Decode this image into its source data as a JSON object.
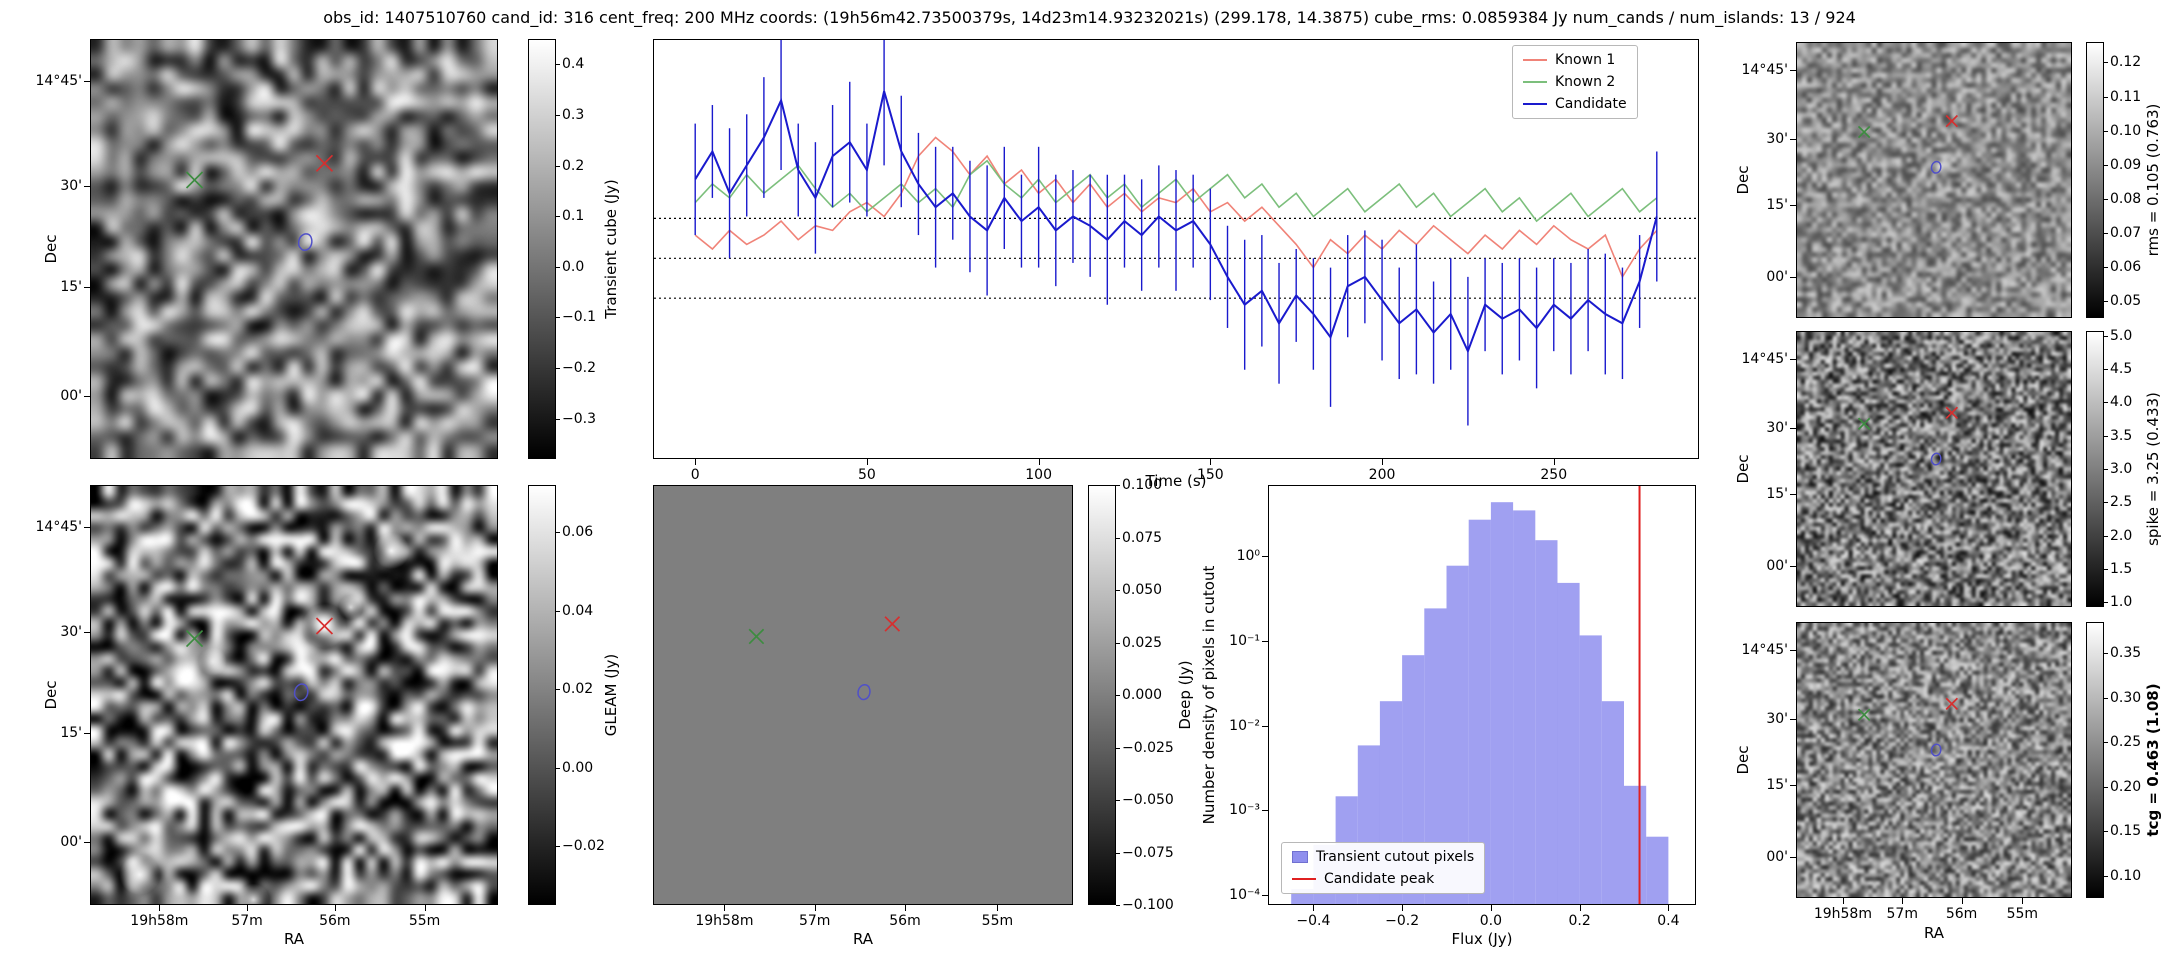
{
  "title": "obs_id: 1407510760 cand_id: 316 cent_freq: 200 MHz coords: (19h56m42.73500379s, 14d23m14.93232021s) (299.178, 14.3875) cube_rms: 0.0859384 Jy num_cands / num_islands: 13 / 924",
  "colors": {
    "green_x": "#3d8c40",
    "red_x": "#d62f2f",
    "contour": "#5050c8",
    "known1": "#f08378",
    "known2": "#7cbf7c",
    "candidate": "#1a1acd",
    "hist_bar": "#8f8fee",
    "peak_line": "#e02020"
  },
  "axes": {
    "ra_label": "RA",
    "dec_label": "Dec",
    "ra_ticks": [
      {
        "f": 0.17,
        "t": "19h58m"
      },
      {
        "f": 0.385,
        "t": "57m"
      },
      {
        "f": 0.6,
        "t": "56m"
      },
      {
        "f": 0.82,
        "t": "55m"
      }
    ],
    "dec_ticks": [
      {
        "f": 0.1,
        "t": "14°45'"
      },
      {
        "f": 0.35,
        "t": "30'"
      },
      {
        "f": 0.59,
        "t": "15'"
      },
      {
        "f": 0.85,
        "t": "00'"
      }
    ]
  },
  "image_panels": [
    {
      "key": "transient_cube",
      "colorbar": {
        "label": "Transient cube (Jy)",
        "bold": false,
        "min": -0.38,
        "max": 0.45,
        "ticks": [
          {
            "v": 0.4,
            "t": "0.4"
          },
          {
            "v": 0.3,
            "t": "0.3"
          },
          {
            "v": 0.2,
            "t": "0.2"
          },
          {
            "v": 0.1,
            "t": "0.1"
          },
          {
            "v": 0.0,
            "t": "0.0"
          },
          {
            "v": -0.1,
            "t": "−0.1"
          },
          {
            "v": -0.2,
            "t": "−0.2"
          },
          {
            "v": -0.3,
            "t": "−0.3"
          }
        ]
      },
      "markers": {
        "green_x": [
          0.255,
          0.335
        ],
        "red_x": [
          0.575,
          0.295
        ],
        "contour": [
          0.525,
          0.48
        ]
      }
    },
    {
      "key": "gleam",
      "colorbar": {
        "label": "GLEAM (Jy)",
        "bold": false,
        "min": -0.035,
        "max": 0.072,
        "ticks": [
          {
            "v": 0.06,
            "t": "0.06"
          },
          {
            "v": 0.04,
            "t": "0.04"
          },
          {
            "v": 0.02,
            "t": "0.02"
          },
          {
            "v": 0.0,
            "t": "0.00"
          },
          {
            "v": -0.02,
            "t": "−0.02"
          }
        ]
      },
      "markers": {
        "green_x": [
          0.255,
          0.365
        ],
        "red_x": [
          0.575,
          0.335
        ],
        "contour": [
          0.515,
          0.49
        ]
      }
    },
    {
      "key": "deep",
      "colorbar": {
        "label": "Deep (Jy)",
        "bold": false,
        "min": -0.1,
        "max": 0.1,
        "ticks": [
          {
            "v": 0.1,
            "t": "0.100"
          },
          {
            "v": 0.075,
            "t": "0.075"
          },
          {
            "v": 0.05,
            "t": "0.050"
          },
          {
            "v": 0.025,
            "t": "0.025"
          },
          {
            "v": 0.0,
            "t": "0.000"
          },
          {
            "v": -0.025,
            "t": "−0.025"
          },
          {
            "v": -0.05,
            "t": "−0.050"
          },
          {
            "v": -0.075,
            "t": "−0.075"
          },
          {
            "v": -0.1,
            "t": "−0.100"
          }
        ]
      },
      "markers": {
        "green_x": [
          0.245,
          0.36
        ],
        "red_x": [
          0.57,
          0.33
        ],
        "contour": [
          0.5,
          0.49
        ]
      }
    },
    {
      "key": "rms",
      "colorbar": {
        "label": "rms = 0.105 (0.763)",
        "bold": false,
        "min": 0.045,
        "max": 0.126,
        "ticks": [
          {
            "v": 0.12,
            "t": "0.12"
          },
          {
            "v": 0.11,
            "t": "0.11"
          },
          {
            "v": 0.1,
            "t": "0.10"
          },
          {
            "v": 0.09,
            "t": "0.09"
          },
          {
            "v": 0.08,
            "t": "0.08"
          },
          {
            "v": 0.07,
            "t": "0.07"
          },
          {
            "v": 0.06,
            "t": "0.06"
          },
          {
            "v": 0.05,
            "t": "0.05"
          }
        ]
      },
      "markers": {
        "green_x": [
          0.245,
          0.325
        ],
        "red_x": [
          0.565,
          0.285
        ],
        "contour": [
          0.505,
          0.45
        ]
      }
    },
    {
      "key": "spike",
      "colorbar": {
        "label": "spike = 3.25 (0.433)",
        "bold": false,
        "min": 0.93,
        "max": 5.07,
        "ticks": [
          {
            "v": 5.0,
            "t": "5.0"
          },
          {
            "v": 4.5,
            "t": "4.5"
          },
          {
            "v": 4.0,
            "t": "4.0"
          },
          {
            "v": 3.5,
            "t": "3.5"
          },
          {
            "v": 3.0,
            "t": "3.0"
          },
          {
            "v": 2.5,
            "t": "2.5"
          },
          {
            "v": 2.0,
            "t": "2.0"
          },
          {
            "v": 1.5,
            "t": "1.5"
          },
          {
            "v": 1.0,
            "t": "1.0"
          }
        ]
      },
      "markers": {
        "green_x": [
          0.245,
          0.335
        ],
        "red_x": [
          0.565,
          0.295
        ],
        "contour": [
          0.505,
          0.46
        ]
      }
    },
    {
      "key": "tcg",
      "colorbar": {
        "label": "tcg = 0.463 (1.08)",
        "bold": true,
        "min": 0.075,
        "max": 0.385,
        "ticks": [
          {
            "v": 0.35,
            "t": "0.35"
          },
          {
            "v": 0.3,
            "t": "0.30"
          },
          {
            "v": 0.25,
            "t": "0.25"
          },
          {
            "v": 0.2,
            "t": "0.20"
          },
          {
            "v": 0.15,
            "t": "0.15"
          },
          {
            "v": 0.1,
            "t": "0.10"
          }
        ]
      },
      "markers": {
        "green_x": [
          0.245,
          0.335
        ],
        "red_x": [
          0.565,
          0.295
        ],
        "contour": [
          0.505,
          0.46
        ]
      }
    }
  ],
  "chart_data": [
    {
      "type": "line",
      "title": "",
      "xlabel": "Time (s)",
      "ylabel": "",
      "xlim": [
        -12,
        292
      ],
      "ylim": [
        -0.43,
        0.47
      ],
      "hlines": [
        0.0859384,
        0.0,
        -0.0859384
      ],
      "legend_position": "upper right",
      "xticks": [
        {
          "v": 0,
          "t": "0"
        },
        {
          "v": 50,
          "t": "50"
        },
        {
          "v": 100,
          "t": "100"
        },
        {
          "v": 150,
          "t": "150"
        },
        {
          "v": 200,
          "t": "200"
        },
        {
          "v": 250,
          "t": "250"
        }
      ],
      "x": [
        0,
        5,
        10,
        15,
        20,
        25,
        30,
        35,
        40,
        45,
        50,
        55,
        60,
        65,
        70,
        75,
        80,
        85,
        90,
        95,
        100,
        105,
        110,
        115,
        120,
        125,
        130,
        135,
        140,
        145,
        150,
        155,
        160,
        165,
        170,
        175,
        180,
        185,
        190,
        195,
        200,
        205,
        210,
        215,
        220,
        225,
        230,
        235,
        240,
        245,
        250,
        255,
        260,
        265,
        270,
        275,
        280
      ],
      "series": [
        {
          "name": "Known 1",
          "color": "#f08378",
          "values": [
            0.05,
            0.02,
            0.06,
            0.03,
            0.05,
            0.08,
            0.04,
            0.07,
            0.06,
            0.1,
            0.12,
            0.09,
            0.14,
            0.22,
            0.26,
            0.23,
            0.18,
            0.22,
            0.16,
            0.19,
            0.14,
            0.17,
            0.12,
            0.16,
            0.11,
            0.14,
            0.1,
            0.13,
            0.12,
            0.15,
            0.1,
            0.12,
            0.08,
            0.11,
            0.07,
            0.03,
            -0.02,
            0.04,
            0.01,
            0.05,
            0.02,
            0.06,
            0.03,
            0.07,
            0.04,
            0.01,
            0.05,
            0.02,
            0.06,
            0.03,
            0.07,
            0.04,
            0.02,
            0.05,
            -0.04,
            0.02,
            0.06
          ]
        },
        {
          "name": "Known 2",
          "color": "#7cbf7c",
          "values": [
            0.12,
            0.16,
            0.13,
            0.18,
            0.14,
            0.17,
            0.2,
            0.15,
            0.11,
            0.14,
            0.1,
            0.13,
            0.16,
            0.12,
            0.15,
            0.11,
            0.18,
            0.21,
            0.16,
            0.13,
            0.17,
            0.12,
            0.15,
            0.18,
            0.13,
            0.16,
            0.11,
            0.14,
            0.17,
            0.12,
            0.15,
            0.18,
            0.13,
            0.16,
            0.11,
            0.14,
            0.09,
            0.12,
            0.15,
            0.1,
            0.13,
            0.16,
            0.11,
            0.14,
            0.09,
            0.12,
            0.15,
            0.1,
            0.13,
            0.08,
            0.11,
            0.14,
            0.09,
            0.12,
            0.15,
            0.1,
            0.13
          ]
        },
        {
          "name": "Candidate",
          "color": "#1a1acd",
          "values": [
            0.17,
            0.23,
            0.14,
            0.2,
            0.26,
            0.34,
            0.19,
            0.13,
            0.22,
            0.25,
            0.19,
            0.36,
            0.23,
            0.16,
            0.11,
            0.14,
            0.09,
            0.06,
            0.13,
            0.08,
            0.11,
            0.06,
            0.09,
            0.07,
            0.04,
            0.08,
            0.05,
            0.09,
            0.06,
            0.08,
            0.03,
            -0.04,
            -0.1,
            -0.07,
            -0.14,
            -0.08,
            -0.12,
            -0.17,
            -0.06,
            -0.04,
            -0.09,
            -0.14,
            -0.11,
            -0.16,
            -0.12,
            -0.2,
            -0.1,
            -0.13,
            -0.11,
            -0.15,
            -0.1,
            -0.13,
            -0.09,
            -0.12,
            -0.14,
            -0.05,
            0.09
          ],
          "errors": [
            0.12,
            0.1,
            0.14,
            0.11,
            0.13,
            0.15,
            0.1,
            0.12,
            0.11,
            0.13,
            0.1,
            0.16,
            0.12,
            0.11,
            0.13,
            0.1,
            0.12,
            0.14,
            0.11,
            0.1,
            0.13,
            0.12,
            0.1,
            0.11,
            0.14,
            0.1,
            0.12,
            0.11,
            0.13,
            0.1,
            0.12,
            0.11,
            0.14,
            0.12,
            0.13,
            0.1,
            0.12,
            0.15,
            0.11,
            0.1,
            0.13,
            0.12,
            0.14,
            0.11,
            0.12,
            0.16,
            0.1,
            0.12,
            0.11,
            0.13,
            0.1,
            0.12,
            0.11,
            0.13,
            0.12,
            0.1,
            0.14
          ]
        }
      ]
    },
    {
      "type": "bar",
      "title": "",
      "xlabel": "Flux (Jy)",
      "ylabel": "Number density of pixels in cutout",
      "ylog": true,
      "xlim": [
        -0.5,
        0.46
      ],
      "ylim": [
        8e-05,
        7
      ],
      "bar_color": "#8f8fee",
      "bin_edges": [
        -0.45,
        -0.4,
        -0.35,
        -0.3,
        -0.25,
        -0.2,
        -0.15,
        -0.1,
        -0.05,
        0.0,
        0.05,
        0.1,
        0.15,
        0.2,
        0.25,
        0.3,
        0.35,
        0.4
      ],
      "values": [
        0.00012,
        0.0004,
        0.0015,
        0.006,
        0.02,
        0.07,
        0.25,
        0.8,
        2.8,
        4.5,
        3.6,
        1.6,
        0.5,
        0.12,
        0.02,
        0.002,
        0.0005
      ],
      "vline": {
        "x": 0.335,
        "color": "#e02020"
      },
      "legend_labels": [
        "Transient cutout pixels",
        "Candidate peak"
      ],
      "legend_position": "lower left",
      "xticks": [
        {
          "v": -0.4,
          "t": "−0.4"
        },
        {
          "v": -0.2,
          "t": "−0.2"
        },
        {
          "v": 0.0,
          "t": "0.0"
        },
        {
          "v": 0.2,
          "t": "0.2"
        },
        {
          "v": 0.4,
          "t": "0.4"
        }
      ],
      "yticks": [
        {
          "v": 1,
          "t": "10⁰"
        },
        {
          "v": 0.1,
          "t": "10⁻¹"
        },
        {
          "v": 0.01,
          "t": "10⁻²"
        },
        {
          "v": 0.001,
          "t": "10⁻³"
        },
        {
          "v": 0.0001,
          "t": "10⁻⁴"
        }
      ]
    }
  ]
}
